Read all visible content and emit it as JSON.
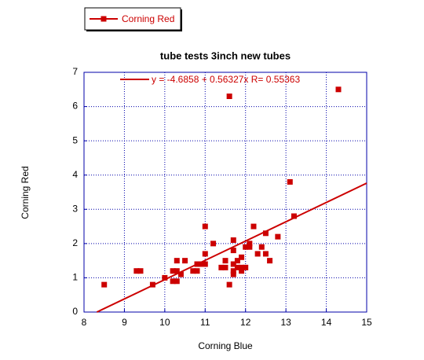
{
  "chart_data": {
    "type": "scatter",
    "title": "tube tests 3inch new tubes",
    "xlabel": "Corning Blue",
    "ylabel": "Corning Red",
    "series": [
      {
        "name": "Corning Red",
        "color": "#cc0000",
        "x": [
          8.5,
          9.3,
          9.4,
          9.7,
          10,
          10.2,
          10.3,
          10.2,
          10.3,
          10.4,
          10.5,
          10.3,
          10.7,
          10.8,
          10.8,
          10.9,
          11,
          11,
          11,
          11.2,
          11.4,
          11.5,
          11.5,
          11.6,
          11.6,
          11.7,
          11.7,
          11.7,
          11.7,
          11.7,
          11.8,
          11.8,
          11.9,
          11.9,
          11.9,
          12,
          12,
          12.1,
          12.1,
          12.2,
          12.3,
          12.4,
          12.5,
          12.5,
          12.6,
          12.8,
          13.1,
          13.2,
          14.3
        ],
        "values": [
          0.8,
          1.2,
          1.2,
          0.8,
          1,
          1.2,
          1.5,
          0.9,
          0.9,
          1.1,
          1.5,
          1.2,
          1.2,
          1.2,
          1.4,
          1.4,
          1.4,
          1.7,
          2.5,
          2,
          1.3,
          1.3,
          1.5,
          0.8,
          6.3,
          1.1,
          1.2,
          1.4,
          1.8,
          2.1,
          1.3,
          1.5,
          1.3,
          1.6,
          1.2,
          1.3,
          1.9,
          1.9,
          2,
          2.5,
          1.7,
          1.9,
          2.3,
          1.7,
          1.5,
          2.2,
          3.8,
          2.8,
          6.5
        ]
      }
    ],
    "fit": {
      "label": "y = -4.6858 + 0.56327x   R= 0.55363",
      "intercept": -4.6858,
      "slope": 0.56327,
      "color": "#cc0000"
    },
    "xlim": [
      8,
      15
    ],
    "xticks": [
      8,
      9,
      10,
      11,
      12,
      13,
      14,
      15
    ],
    "ylim": [
      0,
      7
    ],
    "yticks": [
      0,
      1,
      2,
      3,
      4,
      5,
      6,
      7
    ],
    "grid": true,
    "legend": "top-left"
  }
}
